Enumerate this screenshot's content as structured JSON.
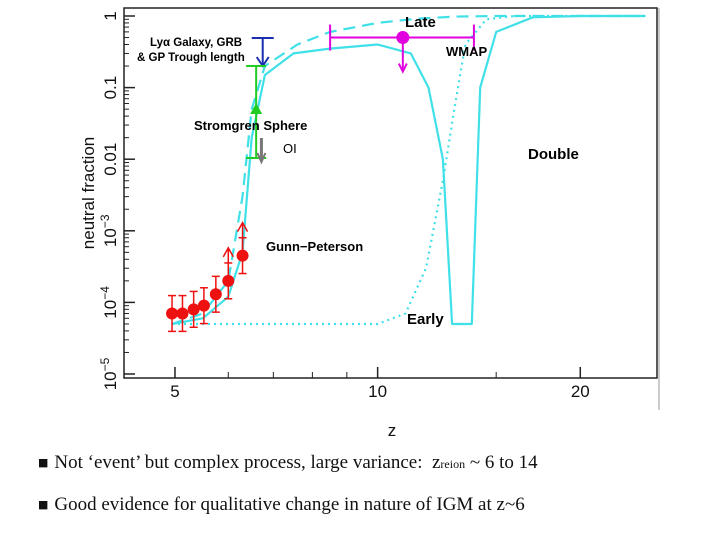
{
  "chart_data": {
    "type": "line",
    "xlabel": "z",
    "ylabel": "neutral fraction",
    "x_scale": "log",
    "y_scale": "log",
    "xlim": [
      4.2,
      26
    ],
    "ylim": [
      1e-05,
      1
    ],
    "x_ticks": [
      {
        "value": 5,
        "label": "5"
      },
      {
        "value": 10,
        "label": "10"
      },
      {
        "value": 20,
        "label": "20"
      }
    ],
    "y_ticks": [
      {
        "value": 1,
        "label": "1"
      },
      {
        "value": 0.1,
        "label": "0.1"
      },
      {
        "value": 0.01,
        "label": "0.01"
      },
      {
        "value": 0.001,
        "label": "10",
        "exp": "−3"
      },
      {
        "value": 0.0001,
        "label": "10",
        "exp": "−4"
      },
      {
        "value": 1e-05,
        "label": "10",
        "exp": "−5"
      }
    ],
    "curve_color": "#40e0e8",
    "series": [
      {
        "name": "Late",
        "style": "dashed",
        "points": [
          [
            4.95,
            5e-05
          ],
          [
            5.5,
            7e-05
          ],
          [
            6.0,
            0.0002
          ],
          [
            6.3,
            0.003
          ],
          [
            6.5,
            0.05
          ],
          [
            6.8,
            0.2
          ],
          [
            7.6,
            0.4
          ],
          [
            8.5,
            0.6
          ],
          [
            10,
            0.8
          ],
          [
            11.5,
            0.92
          ],
          [
            13,
            0.98
          ],
          [
            15,
            1.0
          ],
          [
            25,
            1.0
          ]
        ]
      },
      {
        "name": "Double",
        "style": "solid",
        "points": [
          [
            4.95,
            5e-05
          ],
          [
            5.5,
            6e-05
          ],
          [
            6.0,
            0.00012
          ],
          [
            6.3,
            0.0005
          ],
          [
            6.5,
            0.02
          ],
          [
            6.8,
            0.15
          ],
          [
            7.5,
            0.3
          ],
          [
            8.5,
            0.35
          ],
          [
            10,
            0.4
          ],
          [
            11.2,
            0.3
          ],
          [
            11.9,
            0.1
          ],
          [
            12.5,
            0.01
          ],
          [
            12.9,
            5e-05
          ],
          [
            13.8,
            5e-05
          ],
          [
            14.2,
            0.1
          ],
          [
            15,
            0.6
          ],
          [
            17,
            0.96
          ],
          [
            20,
            1.0
          ],
          [
            25,
            1.0
          ]
        ]
      },
      {
        "name": "Early",
        "style": "dotted",
        "points": [
          [
            4.95,
            5e-05
          ],
          [
            6,
            5e-05
          ],
          [
            8,
            5e-05
          ],
          [
            10,
            5e-05
          ],
          [
            11,
            7e-05
          ],
          [
            11.8,
            0.0003
          ],
          [
            12.5,
            0.005
          ],
          [
            13,
            0.05
          ],
          [
            13.5,
            0.4
          ],
          [
            14.5,
            0.9
          ],
          [
            16,
            1.0
          ],
          [
            25,
            1.0
          ]
        ]
      }
    ],
    "gunn_peterson_points": [
      {
        "z": 4.95,
        "y": 7e-05,
        "err": 0.25
      },
      {
        "z": 5.13,
        "y": 7e-05,
        "err": 0.25
      },
      {
        "z": 5.33,
        "y": 8e-05,
        "err": 0.25
      },
      {
        "z": 5.52,
        "y": 9e-05,
        "err": 0.25
      },
      {
        "z": 5.75,
        "y": 0.00013,
        "err": 0.25
      },
      {
        "z": 6.0,
        "y": 0.0002,
        "err": 0.25,
        "lower_limit": true
      },
      {
        "z": 6.3,
        "y": 0.00045,
        "err": 0.25,
        "lower_limit": true
      }
    ],
    "annotations": {
      "late_label": "Late",
      "double_label": "Double",
      "early_label": "Early",
      "wmap_label": "WMAP",
      "lya_label_1": "Lyα Galaxy, GRB",
      "lya_label_2": "& GP Trough length",
      "stromgren_label": "Stromgren Sphere",
      "gp_label": "Gunn−Peterson",
      "oi_label": "OI"
    },
    "wmap": {
      "z": 10.9,
      "y": 0.5,
      "z_low": 8.5,
      "z_high": 13.9
    },
    "colors": {
      "blue": "#1a2fb0",
      "magenta": "#e000e0",
      "green": "#22cc22",
      "red": "#ee1111",
      "gray": "#777777"
    }
  },
  "bullets": [
    {
      "text": "Not ‘event’ but complex process, large variance:",
      "var": "z",
      "sub": "reion",
      "tail": " ~ 6 to 14"
    },
    {
      "text": "Good evidence for qualitative change in nature of IGM at z~6"
    }
  ],
  "bullet_glyph": "■"
}
